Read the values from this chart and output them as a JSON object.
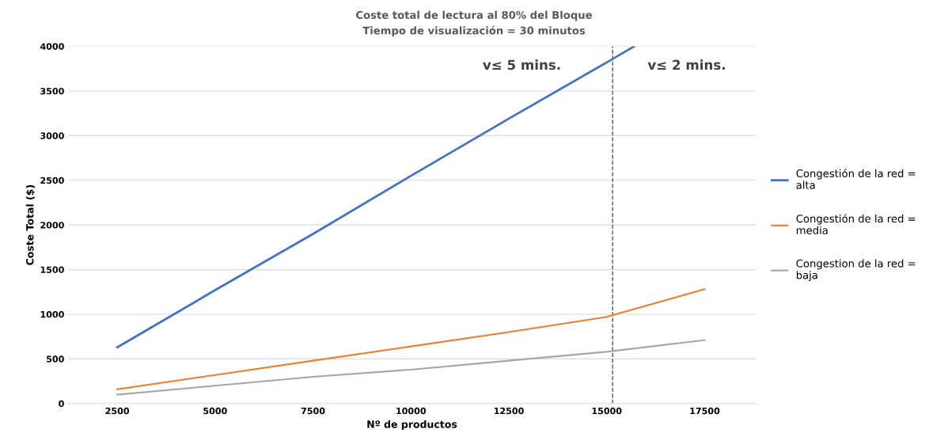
{
  "chart_data": {
    "type": "line",
    "title": "Coste total de lectura al 80% del Bloque",
    "subtitle": "Tiempo de visualización = 30 minutos",
    "xlabel": "Nº de productos",
    "ylabel": "Coste Total ($)",
    "x": [
      2500,
      5000,
      7500,
      10000,
      12500,
      15000,
      17500
    ],
    "series": [
      {
        "name": "Congestión de la red = alta",
        "color": "#4472c4",
        "x": [
          2500,
          5000,
          7500,
          10000,
          12500,
          15000,
          15700
        ],
        "values": [
          630,
          1270,
          1900,
          2550,
          3190,
          3820,
          4000
        ]
      },
      {
        "name": "Congestión de la red = media",
        "color": "#ed7d31",
        "values": [
          160,
          320,
          480,
          640,
          800,
          970,
          1280
        ]
      },
      {
        "name": "Congestion de la red = baja",
        "color": "#a5a5a5",
        "values": [
          100,
          200,
          300,
          380,
          480,
          580,
          710
        ]
      }
    ],
    "xlim": [
      1250,
      18800
    ],
    "xticks": [
      2500,
      5000,
      7500,
      10000,
      12500,
      15000,
      17500
    ],
    "ylim": [
      0,
      4000
    ],
    "yticks": [
      0,
      500,
      1000,
      1500,
      2000,
      2500,
      3000,
      3500,
      4000
    ],
    "ref_lines": [
      {
        "axis": "x",
        "value": 15150,
        "color": "#595959",
        "line_style": "dashed"
      }
    ],
    "annotations": [
      "v≤ 5 mins.",
      "v≤ 2 mins."
    ],
    "grid": "y",
    "legend": "right",
    "line_style": "solid"
  }
}
